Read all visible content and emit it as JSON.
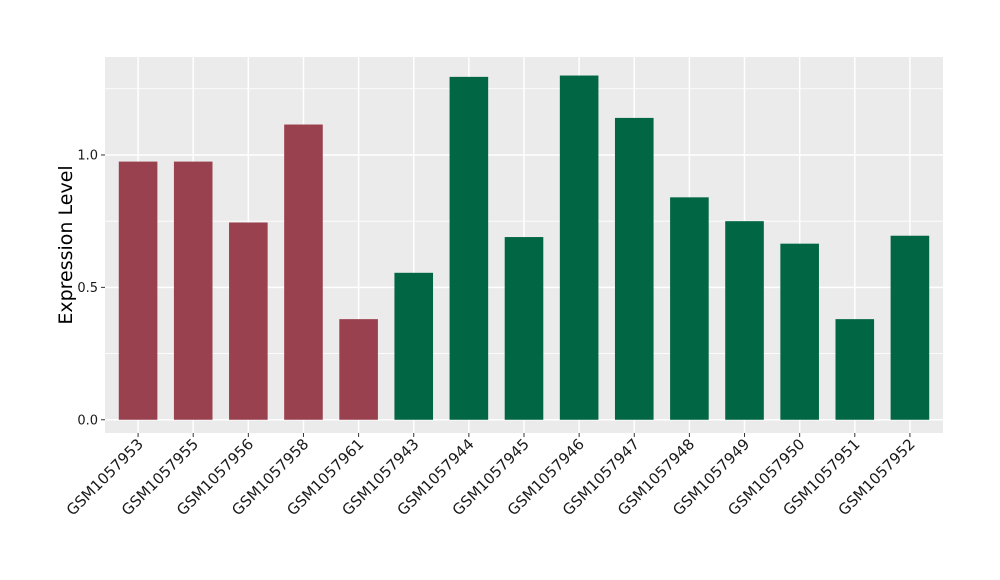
{
  "chart_data": {
    "type": "bar",
    "title": "",
    "xlabel": "",
    "ylabel": "Expression Level",
    "categories": [
      "GSM1057953",
      "GSM1057955",
      "GSM1057956",
      "GSM1057958",
      "GSM1057961",
      "GSM1057943",
      "GSM1057944",
      "GSM1057945",
      "GSM1057946",
      "GSM1057947",
      "GSM1057948",
      "GSM1057949",
      "GSM1057950",
      "GSM1057951",
      "GSM1057952"
    ],
    "values": [
      0.975,
      0.975,
      0.745,
      1.115,
      0.38,
      0.555,
      1.295,
      0.69,
      1.3,
      1.14,
      0.84,
      0.75,
      0.665,
      0.38,
      0.695
    ],
    "groups": [
      "a",
      "a",
      "a",
      "a",
      "a",
      "b",
      "b",
      "b",
      "b",
      "b",
      "b",
      "b",
      "b",
      "b",
      "b"
    ],
    "group_colors": {
      "a": "#9a4150",
      "b": "#006643"
    },
    "ylim": [
      -0.05,
      1.37
    ],
    "yticks": [
      0.0,
      0.5,
      1.0
    ],
    "ytick_labels": [
      "0.0",
      "0.5",
      "1.0"
    ],
    "grid": true,
    "panel_background": "#ebebeb",
    "grid_color": "#ffffff"
  }
}
